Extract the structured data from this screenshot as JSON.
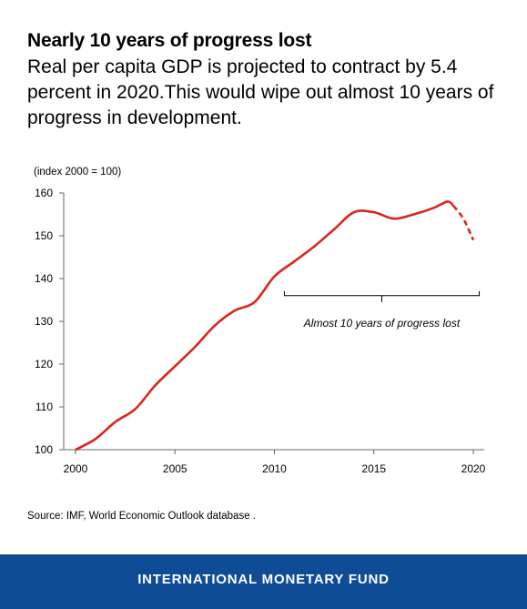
{
  "header": {
    "title": "Nearly 10 years of progress lost",
    "subtitle": "Real per capita GDP is projected to contract by 5.4 percent in 2020.This would wipe out almost 10 years of progress in development."
  },
  "chart_data": {
    "type": "line",
    "unit_label": "(index 2000 = 100)",
    "xlim": [
      2000,
      2020
    ],
    "ylim": [
      100,
      160
    ],
    "x_ticks": [
      "2000",
      "2005",
      "2010",
      "2015",
      "2020"
    ],
    "y_ticks": [
      "160",
      "150",
      "140",
      "130",
      "120",
      "110",
      "100"
    ],
    "grid": false,
    "series": [
      {
        "style": "solid",
        "color": "#d9261c",
        "points": [
          [
            2000,
            100
          ],
          [
            2001,
            102.5
          ],
          [
            2002,
            106.5
          ],
          [
            2003,
            109.5
          ],
          [
            2004,
            115
          ],
          [
            2005,
            119.5
          ],
          [
            2006,
            124
          ],
          [
            2007,
            129
          ],
          [
            2008,
            132.5
          ],
          [
            2009,
            134.5
          ],
          [
            2010,
            140.5
          ],
          [
            2011,
            144
          ],
          [
            2012,
            147.5
          ],
          [
            2013,
            151.5
          ],
          [
            2014,
            155.5
          ],
          [
            2015,
            155.5
          ],
          [
            2016,
            154
          ],
          [
            2017,
            155
          ],
          [
            2018,
            156.5
          ],
          [
            2018.7,
            158
          ],
          [
            2019,
            157
          ]
        ]
      },
      {
        "style": "dashed",
        "color": "#d9261c",
        "points": [
          [
            2019,
            157
          ],
          [
            2019.5,
            154
          ],
          [
            2020,
            149
          ]
        ]
      }
    ],
    "annotation": {
      "text": "Almost 10 years of progress lost",
      "x_from": 2010.5,
      "x_to": 2020.3,
      "y": 136
    }
  },
  "source": "Source: IMF, World Economic Outlook database .",
  "footer": {
    "text": "INTERNATIONAL MONETARY FUND",
    "color": "#0f4c96"
  }
}
